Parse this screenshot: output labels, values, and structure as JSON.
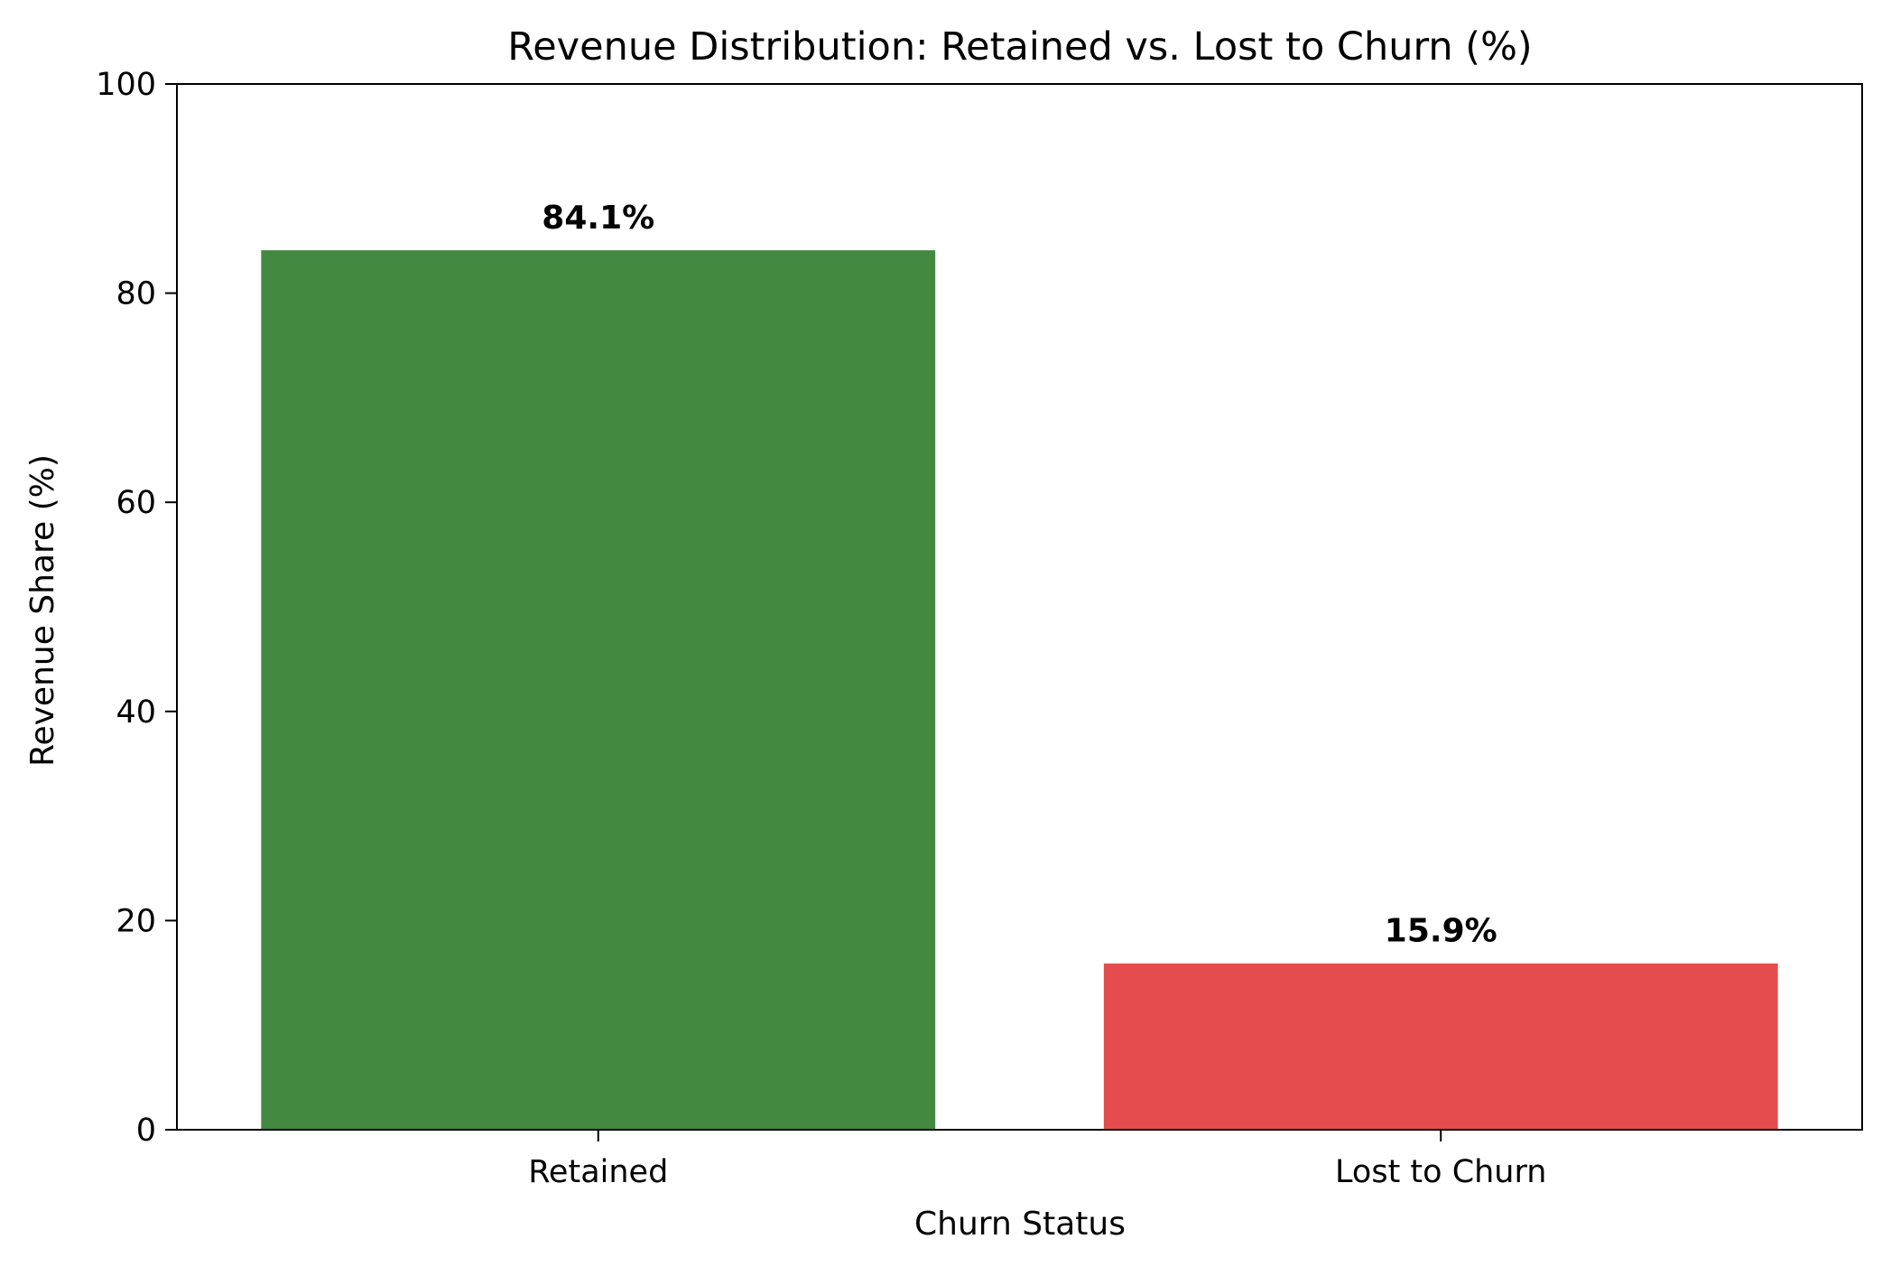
{
  "chart_data": {
    "type": "bar",
    "title": "Revenue Distribution: Retained vs. Lost to Churn (%)",
    "xlabel": "Churn Status",
    "ylabel": "Revenue Share (%)",
    "categories": [
      "Retained",
      "Lost to Churn"
    ],
    "values": [
      84.1,
      15.9
    ],
    "value_labels": [
      "84.1%",
      "15.9%"
    ],
    "colors": [
      "#43893f",
      "#e44c4e"
    ],
    "ylim": [
      0,
      100
    ],
    "yticks": [
      0,
      20,
      40,
      60,
      80,
      100
    ],
    "grid": false,
    "legend": "none"
  }
}
